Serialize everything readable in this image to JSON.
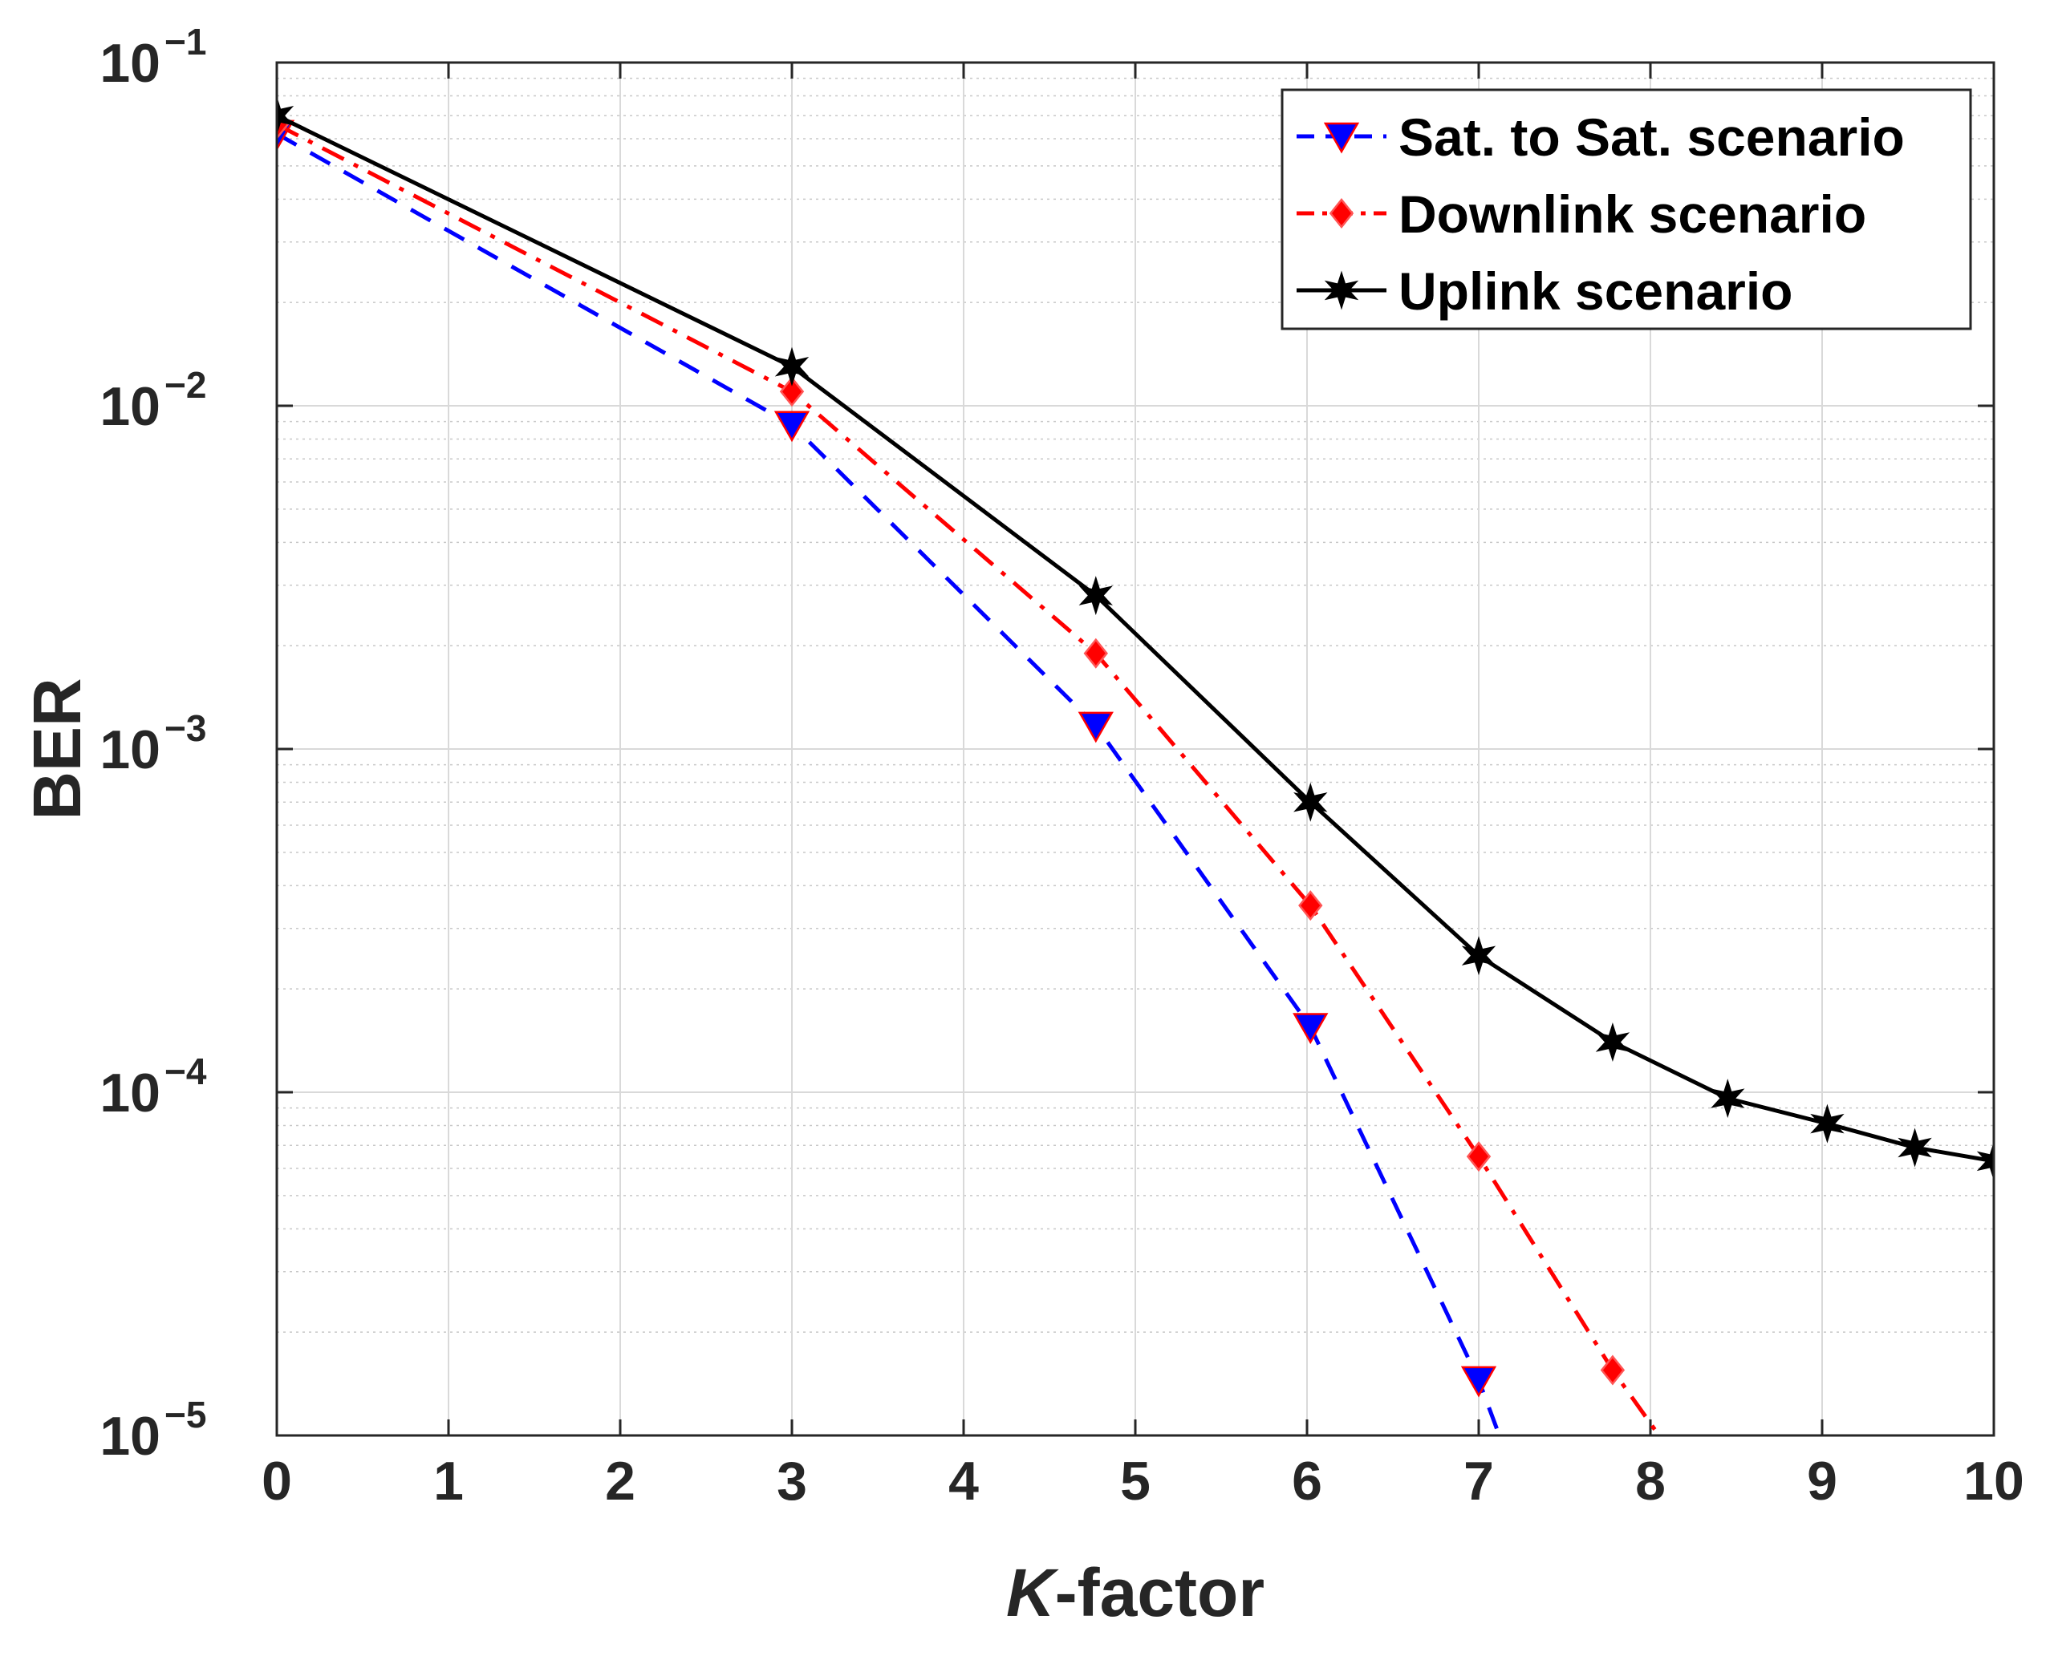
{
  "chart_data": {
    "type": "line",
    "xlabel_italic": "K",
    "xlabel_rest": "-factor",
    "ylabel": "BER",
    "xlim": [
      0,
      10
    ],
    "ylim": [
      1e-05,
      0.1
    ],
    "yscale": "log",
    "grid": true,
    "minor_grid": true,
    "legend_position": "top-right",
    "xticks": [
      "0",
      "1",
      "2",
      "3",
      "4",
      "5",
      "6",
      "7",
      "8",
      "9",
      "10"
    ],
    "yticks": [
      {
        "value": 0.1,
        "base": "10",
        "exp": "−1"
      },
      {
        "value": 0.01,
        "base": "10",
        "exp": "−2"
      },
      {
        "value": 0.001,
        "base": "10",
        "exp": "−3"
      },
      {
        "value": 0.0001,
        "base": "10",
        "exp": "−4"
      },
      {
        "value": 1e-05,
        "base": "10",
        "exp": "−5"
      }
    ],
    "series": [
      {
        "name": "Sat. to Sat. scenario",
        "color": "#0000ff",
        "line_style": "dashed",
        "marker": "triangle-down",
        "x": [
          0,
          3,
          4.77,
          6.02,
          7.0,
          7.12
        ],
        "y": [
          0.062,
          0.0088,
          0.00117,
          0.000155,
          1.45e-05,
          1e-05
        ],
        "marker_count": 5
      },
      {
        "name": "Downlink scenario",
        "color": "#ff0000",
        "line_style": "dashdot",
        "marker": "diamond",
        "x": [
          0,
          3,
          4.77,
          6.02,
          7.0,
          7.78,
          8.05
        ],
        "y": [
          0.066,
          0.011,
          0.0019,
          0.00035,
          6.5e-05,
          1.55e-05,
          1e-05
        ],
        "marker_count": 6
      },
      {
        "name": "Uplink scenario",
        "color": "#000000",
        "line_style": "solid",
        "marker": "star",
        "x": [
          0,
          3,
          4.77,
          6.02,
          7.0,
          7.78,
          8.45,
          9.03,
          9.54,
          10
        ],
        "y": [
          0.07,
          0.013,
          0.0028,
          0.0007,
          0.00025,
          0.00014,
          9.6e-05,
          8.1e-05,
          6.9e-05,
          6.3e-05
        ],
        "marker_count": 10
      }
    ]
  }
}
